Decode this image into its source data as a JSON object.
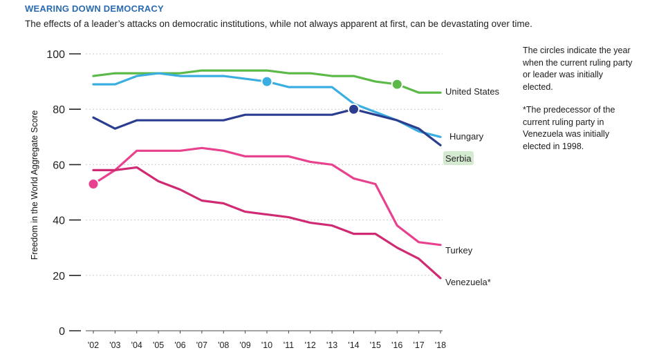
{
  "header": {
    "title": "WEARING DOWN DEMOCRACY",
    "subtitle": "The effects of a leader’s attacks on democratic institutions, while not always apparent at first, can be devastating over time."
  },
  "notes": {
    "circles": "The circles indicate the year when the current ruling party or leader was initially elected.",
    "venezuela": "*The predecessor of the current ruling party in Venezuela was initially elected in 1998."
  },
  "chart_data": {
    "type": "line",
    "title": "WEARING DOWN DEMOCRACY",
    "ylabel": "Freedom in the World Aggregate Score",
    "xlabel": "",
    "ylim": [
      0,
      100
    ],
    "yticks": [
      0,
      20,
      40,
      60,
      80,
      100
    ],
    "categories": [
      "'02",
      "'03",
      "'04",
      "'05",
      "'06",
      "'07",
      "'08",
      "'09",
      "'10",
      "'11",
      "'12",
      "'13",
      "'14",
      "'15",
      "'16",
      "'17",
      "'18"
    ],
    "series": [
      {
        "name": "United States",
        "color": "#5ab947",
        "values": [
          92,
          93,
          93,
          93,
          93,
          94,
          94,
          94,
          94,
          93,
          93,
          92,
          92,
          90,
          89,
          86,
          86
        ],
        "marker_index": 14
      },
      {
        "name": "Hungary",
        "color": "#3aaee0",
        "values": [
          89,
          89,
          92,
          93,
          92,
          92,
          92,
          91,
          90,
          88,
          88,
          88,
          82,
          79,
          76,
          72,
          70
        ],
        "marker_index": 8
      },
      {
        "name": "Serbia",
        "color": "#2a3d8f",
        "values": [
          77,
          73,
          76,
          76,
          76,
          76,
          76,
          78,
          78,
          78,
          78,
          78,
          80,
          78,
          76,
          73,
          67
        ],
        "marker_index": 12
      },
      {
        "name": "Turkey",
        "color": "#e8418e",
        "values": [
          53,
          58,
          65,
          65,
          65,
          66,
          65,
          63,
          63,
          63,
          61,
          60,
          55,
          53,
          38,
          32,
          31
        ],
        "marker_index": 0
      },
      {
        "name": "Venezuela*",
        "color": "#cf2a72",
        "values": [
          58,
          58,
          59,
          54,
          51,
          47,
          46,
          43,
          42,
          41,
          39,
          38,
          35,
          35,
          30,
          26,
          19
        ],
        "marker_index": null
      }
    ],
    "label_highlight_color": "#d4ead0"
  }
}
